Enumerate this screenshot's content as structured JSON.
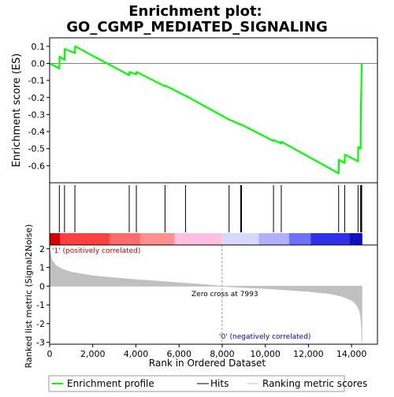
{
  "chart_data": {
    "type": "line",
    "title_line1": "Enrichment plot:",
    "title_line2": "GO_CGMP_MEDIATED_SIGNALING",
    "es_panel": {
      "ylabel": "Enrichment score (ES)",
      "ylim": [
        -0.7,
        0.15
      ],
      "yticks": [
        0.1,
        0.0,
        -0.1,
        -0.2,
        -0.3,
        -0.4,
        -0.5,
        -0.6
      ],
      "ytick_labels": [
        "0.1",
        "0.0",
        "-0.1",
        "-0.2",
        "-0.3",
        "-0.4",
        "-0.5",
        "-0.6"
      ],
      "line_color": "#00ff00",
      "curve": [
        [
          0,
          0.0
        ],
        [
          450,
          -0.03
        ],
        [
          460,
          0.04
        ],
        [
          690,
          0.02
        ],
        [
          700,
          0.085
        ],
        [
          1170,
          0.06
        ],
        [
          1180,
          0.1
        ],
        [
          3690,
          -0.07
        ],
        [
          3700,
          -0.05
        ],
        [
          4020,
          -0.065
        ],
        [
          4030,
          -0.05
        ],
        [
          5350,
          -0.135
        ],
        [
          5360,
          -0.13
        ],
        [
          6300,
          -0.19
        ],
        [
          6310,
          -0.19
        ],
        [
          8320,
          -0.33
        ],
        [
          8330,
          -0.33
        ],
        [
          8860,
          -0.36
        ],
        [
          8870,
          -0.36
        ],
        [
          8900,
          -0.36
        ],
        [
          10380,
          -0.455
        ],
        [
          10390,
          -0.45
        ],
        [
          10740,
          -0.47
        ],
        [
          10750,
          -0.46
        ],
        [
          13400,
          -0.645
        ],
        [
          13410,
          -0.565
        ],
        [
          13680,
          -0.585
        ],
        [
          13690,
          -0.535
        ],
        [
          14300,
          -0.575
        ],
        [
          14310,
          -0.49
        ],
        [
          14420,
          -0.5
        ],
        [
          14430,
          -0.28
        ],
        [
          14450,
          -0.15
        ],
        [
          14470,
          0.0
        ]
      ]
    },
    "hits_panel": {
      "hit_positions": [
        450,
        690,
        1170,
        3690,
        4020,
        5350,
        6300,
        8320,
        8860,
        8900,
        10380,
        10740,
        13400,
        13680,
        14300,
        14420,
        14450,
        14470
      ],
      "heatmap_bands": [
        {
          "from": 0,
          "to": 500,
          "color": "#d40000"
        },
        {
          "from": 500,
          "to": 2800,
          "color": "#ff4040"
        },
        {
          "from": 2800,
          "to": 4200,
          "color": "#ff6a6a"
        },
        {
          "from": 4200,
          "to": 5800,
          "color": "#ff9090"
        },
        {
          "from": 5800,
          "to": 7993,
          "color": "#ffc0e0"
        },
        {
          "from": 7993,
          "to": 9700,
          "color": "#d8d8ff"
        },
        {
          "from": 9700,
          "to": 11100,
          "color": "#b0b0ff"
        },
        {
          "from": 11100,
          "to": 12100,
          "color": "#7070ff"
        },
        {
          "from": 12100,
          "to": 13900,
          "color": "#3030e8"
        },
        {
          "from": 13900,
          "to": 14500,
          "color": "#1010c0"
        }
      ]
    },
    "metric_panel": {
      "ylabel": "Ranked list metric (Signal2Noise)",
      "ylim": [
        -3.1,
        2.2
      ],
      "yticks": [
        2,
        1,
        0,
        -1,
        -2,
        -3
      ],
      "ytick_labels": [
        "2",
        "1",
        "0",
        "-1",
        "-2",
        "-3"
      ],
      "fill_color": "#c0c0c0",
      "metric_curve": [
        [
          0,
          2.0
        ],
        [
          100,
          1.4
        ],
        [
          300,
          1.1
        ],
        [
          600,
          0.9
        ],
        [
          1000,
          0.75
        ],
        [
          2000,
          0.55
        ],
        [
          3000,
          0.45
        ],
        [
          4000,
          0.35
        ],
        [
          5000,
          0.27
        ],
        [
          6000,
          0.18
        ],
        [
          7000,
          0.1
        ],
        [
          7993,
          0.0
        ],
        [
          9000,
          -0.07
        ],
        [
          10000,
          -0.13
        ],
        [
          11000,
          -0.2
        ],
        [
          12000,
          -0.28
        ],
        [
          13000,
          -0.4
        ],
        [
          13500,
          -0.52
        ],
        [
          14000,
          -0.75
        ],
        [
          14200,
          -0.95
        ],
        [
          14350,
          -1.25
        ],
        [
          14420,
          -1.6
        ],
        [
          14460,
          -2.2
        ],
        [
          14480,
          -3.0
        ]
      ],
      "positive_label": "'1' (positively correlated)",
      "negative_label": "'0' (negatively correlated)",
      "zero_cross_label": "Zero cross at 7993",
      "zero_cross": 7993
    },
    "xaxis": {
      "xlabel": "Rank in Ordered Dataset",
      "xlim": [
        0,
        15200
      ],
      "xticks": [
        0,
        2000,
        4000,
        6000,
        8000,
        10000,
        12000,
        14000
      ],
      "xtick_labels": [
        "0",
        "2,000",
        "4,000",
        "6,000",
        "8,000",
        "10,000",
        "12,000",
        "14,000"
      ],
      "max_rank": 14500
    },
    "legend": {
      "placement": "bottom",
      "items": [
        {
          "label": "Enrichment profile",
          "color": "#00ff00"
        },
        {
          "label": "Hits",
          "color": "#000000"
        },
        {
          "label": "Ranking metric scores",
          "color": "#c0c0c0"
        }
      ]
    }
  }
}
